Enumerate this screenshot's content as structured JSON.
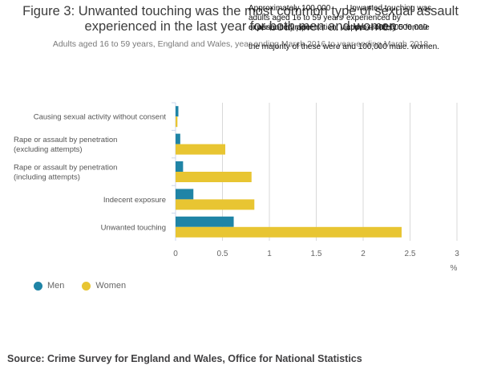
{
  "title": "Figure 3: Unwanted touching was the most common type of sexual assault experienced in the last year for both men and women",
  "subtitle": "Adults aged 16 to 59 years, England and Wales, year ending March 2016 to year ending March 2018",
  "annotations": [
    "Approximately 100,000 adults aged 16 to 59 years experienced rape",
    "Unwanted touching was experienced by approximately 500,000",
    "or assault by penetration; victims – 400,000 female",
    "the majority of these were and 100,000 male. women."
  ],
  "source": "Source: Crime Survey for England and Wales, Office for National Statistics",
  "colors": {
    "men": "#1f84a6",
    "women": "#e8c532",
    "grid": "#d9d9d9",
    "axis": "#ccd6eb"
  },
  "chart_data": {
    "type": "bar",
    "orientation": "horizontal",
    "categories": [
      "Causing sexual activity without consent",
      "Rape or assault by penetration (excluding attempts)",
      "Rape or assault by penetration (including attempts)",
      "Indecent exposure",
      "Unwanted touching"
    ],
    "series": [
      {
        "name": "Men",
        "values": [
          0.03,
          0.05,
          0.08,
          0.19,
          0.62
        ]
      },
      {
        "name": "Women",
        "values": [
          0.02,
          0.53,
          0.81,
          0.84,
          2.41
        ]
      }
    ],
    "xlim": [
      0,
      3
    ],
    "xticks": [
      "0",
      "0.5",
      "1",
      "1.5",
      "2",
      "2.5",
      "3"
    ],
    "xunit": "%",
    "grid": true,
    "legend": "bottom-left"
  }
}
